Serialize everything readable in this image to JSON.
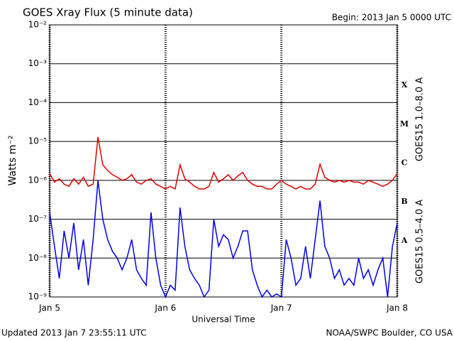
{
  "chart_data": {
    "type": "line",
    "title": "GOES Xray Flux (5 minute data)",
    "subtitle": "Begin:  2013 Jan 5 0000 UTC",
    "ylabel": "Watts m⁻²",
    "xlabel": "Universal Time",
    "footer_left": "Updated 2013 Jan  7 23:55:11 UTC",
    "footer_right": "NOAA/SWPC Boulder, CO USA",
    "flare_classes": [
      "X",
      "M",
      "C",
      "B",
      "A"
    ],
    "log_scale": true,
    "grid": true,
    "xlim": [
      0,
      72
    ],
    "xticks": [
      {
        "value": 0,
        "label": "Jan 5"
      },
      {
        "value": 24,
        "label": "Jan 6"
      },
      {
        "value": 48,
        "label": "Jan 7"
      },
      {
        "value": 72,
        "label": "Jan 8"
      }
    ],
    "ylim": [
      1e-09,
      0.01
    ],
    "yticks": [
      {
        "value": 1e-09,
        "label": "10⁻⁹"
      },
      {
        "value": 1e-08,
        "label": "10⁻⁸"
      },
      {
        "value": 1e-07,
        "label": "10⁻⁷"
      },
      {
        "value": 1e-06,
        "label": "10⁻⁶"
      },
      {
        "value": 1e-05,
        "label": "10⁻⁵"
      },
      {
        "value": 0.0001,
        "label": "10⁻⁴"
      },
      {
        "value": 0.001,
        "label": "10⁻³"
      },
      {
        "value": 0.01,
        "label": "10⁻²"
      }
    ],
    "x": [
      0,
      1,
      2,
      3,
      4,
      5,
      6,
      7,
      8,
      9,
      10,
      11,
      12,
      13,
      14,
      15,
      16,
      17,
      18,
      19,
      20,
      21,
      22,
      23,
      24,
      25,
      26,
      27,
      28,
      29,
      30,
      31,
      32,
      33,
      34,
      35,
      36,
      37,
      38,
      39,
      40,
      41,
      42,
      43,
      44,
      45,
      46,
      47,
      48,
      49,
      50,
      51,
      52,
      53,
      54,
      55,
      56,
      57,
      58,
      59,
      60,
      61,
      62,
      63,
      64,
      65,
      66,
      67,
      68,
      69,
      70,
      71,
      72
    ],
    "series": [
      {
        "name": "GOES15 1.0–8.0 A",
        "color": "#e00000",
        "values": [
          1.5e-06,
          9e-07,
          1.1e-06,
          8e-07,
          7e-07,
          1.1e-06,
          8e-07,
          1.2e-06,
          7e-07,
          8e-07,
          1.3e-05,
          2.5e-06,
          1.8e-06,
          1.4e-06,
          1.2e-06,
          1e-06,
          1.1e-06,
          1.4e-06,
          9e-07,
          8e-07,
          1e-06,
          1.1e-06,
          8e-07,
          7e-07,
          6e-07,
          7e-07,
          6e-07,
          2.5e-06,
          1.1e-06,
          9e-07,
          7e-07,
          6e-07,
          6e-07,
          7e-07,
          1.6e-06,
          9e-07,
          1.1e-06,
          1.4e-06,
          1e-06,
          1.3e-06,
          1.6e-06,
          1e-06,
          8e-07,
          7e-07,
          7e-07,
          6e-07,
          6e-07,
          8e-07,
          1e-06,
          8e-07,
          7e-07,
          6e-07,
          7e-07,
          6e-07,
          6e-07,
          8e-07,
          2.6e-06,
          1.2e-06,
          1e-06,
          9e-07,
          1e-06,
          9e-07,
          1e-06,
          9e-07,
          9e-07,
          8e-07,
          1e-06,
          9e-07,
          8e-07,
          7e-07,
          8e-07,
          1e-06,
          1.5e-06
        ]
      },
      {
        "name": "GOES15 0.5–4.0 A",
        "color": "#0000e0",
        "values": [
          1.5e-07,
          2e-08,
          3e-09,
          5e-08,
          1e-08,
          8e-08,
          5e-09,
          3e-08,
          2e-09,
          3e-08,
          1e-06,
          1e-07,
          3e-08,
          1.5e-08,
          1e-08,
          5e-09,
          1e-08,
          3e-08,
          5e-09,
          3e-09,
          2e-09,
          1.5e-07,
          1e-08,
          2e-09,
          1e-09,
          2e-09,
          1.5e-09,
          2e-07,
          2e-08,
          5e-09,
          3e-09,
          2e-09,
          1e-09,
          1.5e-09,
          1e-07,
          2e-08,
          4e-08,
          3e-08,
          1e-08,
          2e-08,
          5e-08,
          5e-08,
          5e-09,
          2e-09,
          1e-09,
          1.5e-09,
          1e-09,
          1.2e-09,
          1e-09,
          3e-08,
          1e-08,
          2e-09,
          3e-09,
          2e-08,
          3e-09,
          3e-08,
          3e-07,
          2e-08,
          1e-08,
          3e-09,
          5e-09,
          2e-09,
          3e-09,
          2e-09,
          1e-08,
          3e-09,
          5e-09,
          2e-09,
          5e-09,
          1e-08,
          1e-09,
          2e-08,
          8e-08
        ]
      }
    ]
  }
}
